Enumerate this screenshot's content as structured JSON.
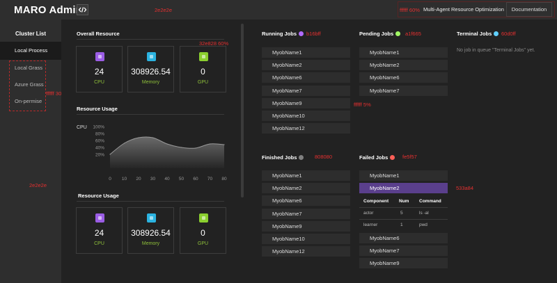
{
  "header": {
    "logo": "MARO Admin",
    "title": "Multi-Agent Resource Optimization",
    "documentation": "Documentation"
  },
  "notes": {
    "n1": "2e2e2e",
    "n2": "ffffff 60%",
    "n3": "32e828 60%",
    "n4": "ffffff 30%",
    "n5": "2e2e2e",
    "n6": "ffffff 5%",
    "n7": "b16bff",
    "n8": "a1f665",
    "n9": "60d0ff",
    "n10": "808080",
    "n11": "fe5f57",
    "n12": "533a84"
  },
  "sidebar": {
    "title": "Cluster List",
    "items": [
      "Local Process",
      "Local Grass",
      "Azure Grass",
      "On-permise"
    ]
  },
  "overall": {
    "title": "Overall Resource",
    "cards": [
      {
        "value": "24",
        "label": "CPU",
        "color": "#9b5de5"
      },
      {
        "value": "308926.54",
        "label": "Memory",
        "color": "#2bb3e0"
      },
      {
        "value": "0",
        "label": "GPU",
        "color": "#8bcf2f"
      }
    ]
  },
  "usage": {
    "title": "Resource Usage",
    "cards": [
      {
        "value": "24",
        "label": "CPU",
        "color": "#9b5de5"
      },
      {
        "value": "308926.54",
        "label": "Memory",
        "color": "#2bb3e0"
      },
      {
        "value": "0",
        "label": "GPU",
        "color": "#8bcf2f"
      }
    ]
  },
  "chart_data": {
    "type": "area",
    "title": "Resource Usage",
    "series_label": "CPU",
    "x": [
      0,
      10,
      20,
      30,
      40,
      50,
      60,
      70,
      80
    ],
    "y": [
      20,
      52,
      68,
      68,
      50,
      40,
      38,
      50,
      48
    ],
    "ytick_labels": [
      "100%",
      "80%",
      "60%",
      "40%",
      "20%"
    ],
    "xlim": [
      0,
      80
    ],
    "ylim": [
      0,
      100
    ]
  },
  "jobs": {
    "running": {
      "title": "Running Jobs",
      "color": "#b16bff",
      "items": [
        "MyobName1",
        "MyobName2",
        "MyobName6",
        "MyobName7",
        "MyobName9",
        "MyobName10",
        "MyobName12"
      ]
    },
    "pending": {
      "title": "Pending Jobs",
      "color": "#a1f665",
      "items": [
        "MyobName1",
        "MyobName2",
        "MyobName6",
        "MyobName7"
      ]
    },
    "terminal": {
      "title": "Terminal Jobs",
      "color": "#60d0ff",
      "empty": "No job in queue \"Terminal Jobs\" yet."
    },
    "finished": {
      "title": "Finished Jobs",
      "color": "#808080",
      "items": [
        "MyobName1",
        "MyobName2",
        "MyobName6",
        "MyobName7",
        "MyobName9",
        "MyobName10",
        "MyobName12"
      ]
    },
    "failed": {
      "title": "Failed Jobs",
      "color": "#fe5f57",
      "selected": "MyobName2",
      "first": "MyobName1",
      "items_after": [
        "MyobName6",
        "MyobName7",
        "MyobName9"
      ],
      "table": {
        "headers": [
          "Component",
          "Num",
          "Command"
        ],
        "rows": [
          [
            "actor",
            "5",
            "ls -al"
          ],
          [
            "learner",
            "1",
            "pwd"
          ]
        ]
      }
    }
  }
}
